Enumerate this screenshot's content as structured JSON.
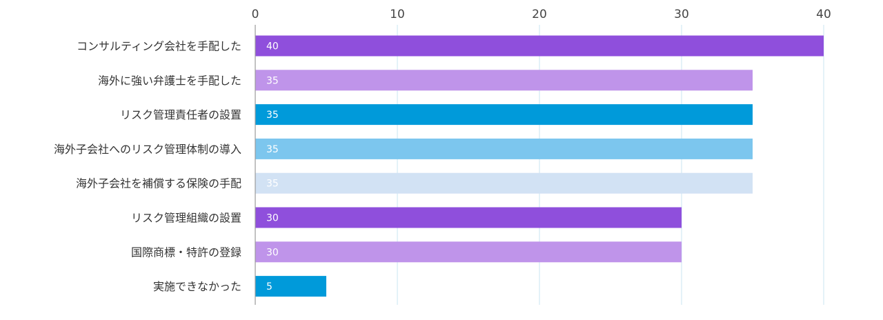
{
  "chart_data": {
    "type": "bar",
    "orientation": "horizontal",
    "categories": [
      "コンサルティング会社を手配した",
      "海外に強い弁護士を手配した",
      "リスク管理責任者の設置",
      "海外子会社へのリスク管理体制の導入",
      "海外子会社を補償する保険の手配",
      "リスク管理組織の設置",
      "国際商標・特許の登録",
      "実施できなかった"
    ],
    "values": [
      40,
      35,
      35,
      35,
      35,
      30,
      30,
      5
    ],
    "data_labels": [
      "40",
      "35",
      "35",
      "35",
      "35",
      "30",
      "30",
      "5"
    ],
    "colors": [
      "#8f4fdc",
      "#bf94ea",
      "#009ada",
      "#7cc6ee",
      "#d2e2f4",
      "#8f4fdc",
      "#bf94ea",
      "#009ada"
    ],
    "xlim": [
      0,
      40
    ],
    "x_ticks": [
      0,
      10,
      20,
      30,
      40
    ],
    "x_tick_labels": [
      "0",
      "10",
      "20",
      "30",
      "40"
    ],
    "x_axis_position": "top",
    "grid": true,
    "grid_color": "#c9e4f2",
    "title": "",
    "xlabel": "",
    "ylabel": ""
  }
}
